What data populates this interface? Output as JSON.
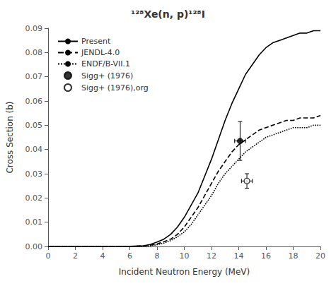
{
  "chart_data": {
    "type": "line",
    "title": "¹²⁸Xe(n, p)¹²⁸I",
    "xlabel": "Incident Neutron Energy (MeV)",
    "ylabel": "Cross Section (b)",
    "xlim": [
      0,
      20
    ],
    "ylim": [
      0,
      0.09
    ],
    "xticks": [
      0,
      2,
      4,
      6,
      8,
      10,
      12,
      14,
      16,
      18,
      20
    ],
    "yticks": [
      {
        "value": 0,
        "label": "0.00"
      },
      0.01,
      0.02,
      0.03,
      0.04,
      0.05,
      0.06,
      0.07,
      0.08,
      0.09
    ],
    "grid": false,
    "legend": "upper left",
    "series": [
      {
        "name": "Present",
        "type": "line",
        "color": "black",
        "line_style": "solid",
        "x": [
          0,
          5.0,
          6.0,
          7.0,
          7.5,
          8.0,
          8.5,
          9.0,
          9.5,
          10.0,
          10.5,
          11.0,
          11.5,
          12.0,
          12.5,
          13.0,
          13.5,
          14.0,
          14.5,
          15.0,
          15.5,
          16.0,
          16.5,
          17.0,
          17.5,
          18.0,
          18.5,
          19.0,
          19.5,
          20.0
        ],
        "values": [
          0,
          1e-05,
          5e-05,
          0.0003,
          0.0008,
          0.0018,
          0.003,
          0.005,
          0.008,
          0.012,
          0.017,
          0.022,
          0.029,
          0.036,
          0.044,
          0.052,
          0.059,
          0.065,
          0.071,
          0.075,
          0.079,
          0.082,
          0.084,
          0.085,
          0.086,
          0.087,
          0.088,
          0.088,
          0.089,
          0.089
        ]
      },
      {
        "name": "JENDL-4.0",
        "type": "line",
        "color": "black",
        "line_style": "dashed",
        "x": [
          0,
          5.0,
          6.0,
          7.0,
          7.5,
          8.0,
          8.5,
          9.0,
          9.5,
          10.0,
          10.5,
          11.0,
          11.5,
          12.0,
          12.5,
          13.0,
          13.5,
          14.0,
          14.5,
          15.0,
          15.5,
          16.0,
          16.5,
          17.0,
          17.5,
          18.0,
          18.5,
          19.0,
          19.5,
          20.0
        ],
        "values": [
          0,
          1e-05,
          3e-05,
          0.0002,
          0.0005,
          0.001,
          0.002,
          0.003,
          0.005,
          0.008,
          0.012,
          0.016,
          0.021,
          0.026,
          0.031,
          0.035,
          0.039,
          0.042,
          0.044,
          0.046,
          0.048,
          0.049,
          0.05,
          0.051,
          0.052,
          0.052,
          0.053,
          0.053,
          0.053,
          0.054
        ]
      },
      {
        "name": "ENDF/B-VII.1",
        "type": "line",
        "color": "black",
        "line_style": "dotted",
        "x": [
          0,
          5.0,
          6.0,
          7.0,
          7.5,
          8.0,
          8.5,
          9.0,
          9.5,
          10.0,
          10.5,
          11.0,
          11.5,
          12.0,
          12.5,
          13.0,
          13.5,
          14.0,
          14.5,
          15.0,
          15.5,
          16.0,
          16.5,
          17.0,
          17.5,
          18.0,
          18.5,
          19.0,
          19.5,
          20.0
        ],
        "values": [
          0,
          5e-06,
          2e-05,
          0.0001,
          0.0003,
          0.0007,
          0.0014,
          0.0024,
          0.004,
          0.006,
          0.009,
          0.013,
          0.017,
          0.021,
          0.026,
          0.03,
          0.033,
          0.036,
          0.039,
          0.041,
          0.043,
          0.045,
          0.046,
          0.047,
          0.048,
          0.049,
          0.049,
          0.049,
          0.05,
          0.05
        ]
      },
      {
        "name": "Sigg+ (1976)",
        "type": "scatter",
        "color": "black",
        "marker": "circle",
        "x": [
          14.1
        ],
        "values": [
          0.0435
        ],
        "xerr": [
          0.4
        ],
        "yerr_lo": [
          0.008
        ],
        "yerr_hi": [
          0.008
        ]
      },
      {
        "name": "Sigg+ (1976),org",
        "type": "scatter",
        "color": "black",
        "marker": "open-circle",
        "x": [
          14.6
        ],
        "values": [
          0.027
        ],
        "xerr": [
          0.4
        ],
        "yerr_lo": [
          0.003
        ],
        "yerr_hi": [
          0.003
        ]
      }
    ]
  }
}
